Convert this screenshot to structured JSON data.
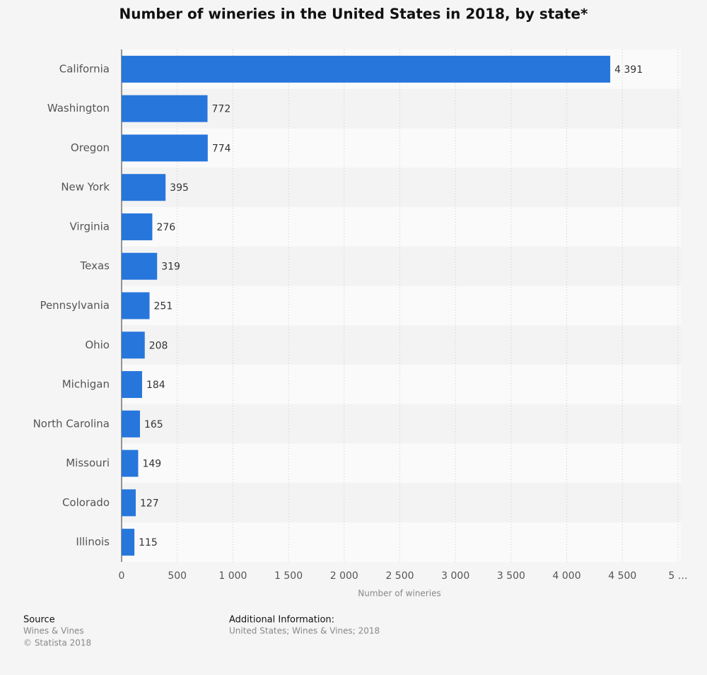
{
  "chart_data": {
    "type": "bar",
    "orientation": "horizontal",
    "title": "Number of wineries in the United States in 2018, by state*",
    "x_label": "Number of wineries",
    "categories": [
      "California",
      "Washington",
      "Oregon",
      "New York",
      "Virginia",
      "Texas",
      "Pennsylvania",
      "Ohio",
      "Michigan",
      "North Carolina",
      "Missouri",
      "Colorado",
      "Illinois"
    ],
    "values": [
      4391,
      772,
      774,
      395,
      276,
      319,
      251,
      208,
      184,
      165,
      149,
      127,
      115
    ],
    "value_labels": [
      "4 391",
      "772",
      "774",
      "395",
      "276",
      "319",
      "251",
      "208",
      "184",
      "165",
      "149",
      "127",
      "115"
    ],
    "color": "#2776dc",
    "xlim": [
      0,
      5000
    ],
    "xticks": [
      0,
      500,
      {
        "value": 1000,
        "label": "1 000"
      },
      {
        "value": 1500,
        "label": "1 500"
      },
      {
        "value": 2000,
        "label": "2 000"
      },
      {
        "value": 2500,
        "label": "2 500"
      },
      {
        "value": 3000,
        "label": "3 000"
      },
      {
        "value": 3500,
        "label": "3 500"
      },
      {
        "value": 4000,
        "label": "4 000"
      },
      {
        "value": 4500,
        "label": "4 500"
      },
      {
        "value": 5000,
        "label": "5 …"
      }
    ],
    "grid": true
  },
  "footer": {
    "source_heading": "Source",
    "source": "Wines & Vines",
    "copyright": "© Statista 2018",
    "info_heading": "Additional Information:",
    "info": "United States; Wines & Vines; 2018"
  }
}
